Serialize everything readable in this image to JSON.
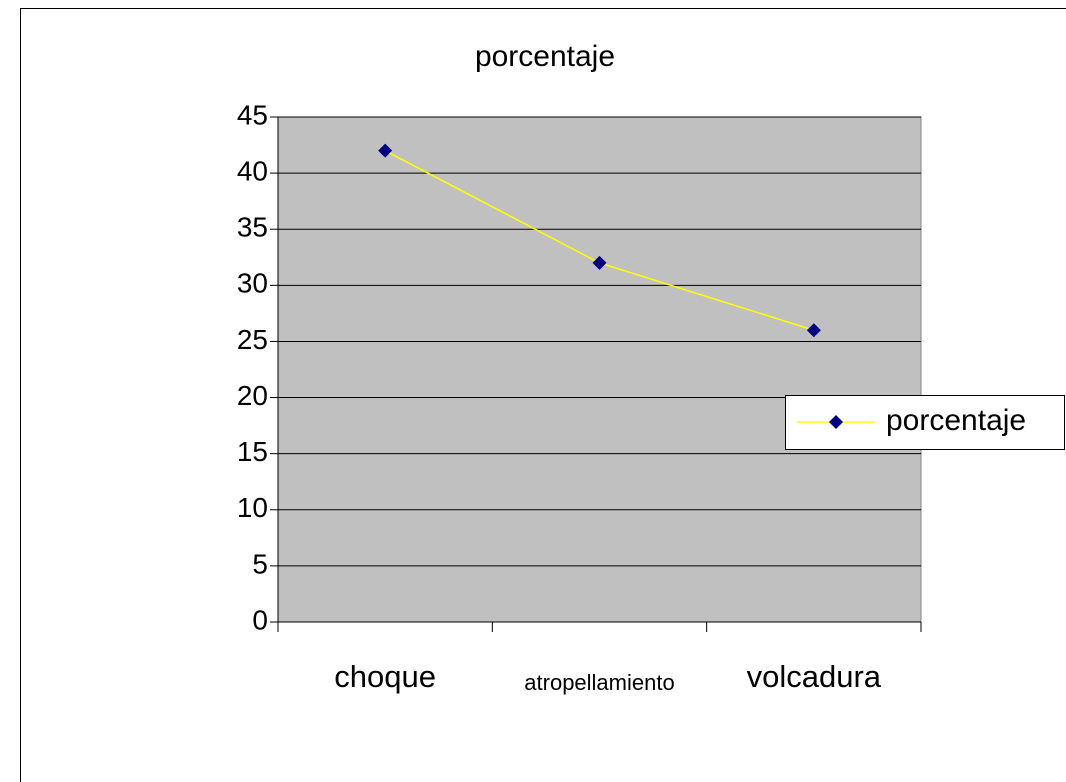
{
  "chart_data": {
    "type": "line",
    "title": "porcentaje",
    "categories": [
      "choque",
      "atropellamiento",
      "volcadura"
    ],
    "series": [
      {
        "name": "porcentaje",
        "color": "#ffff00",
        "marker_color": "#000080",
        "values": [
          42,
          32,
          26
        ]
      }
    ],
    "ylim": [
      0,
      45
    ],
    "yticks": [
      0,
      5,
      10,
      15,
      20,
      25,
      30,
      35,
      40,
      45
    ],
    "grid": true,
    "legend": "right"
  }
}
